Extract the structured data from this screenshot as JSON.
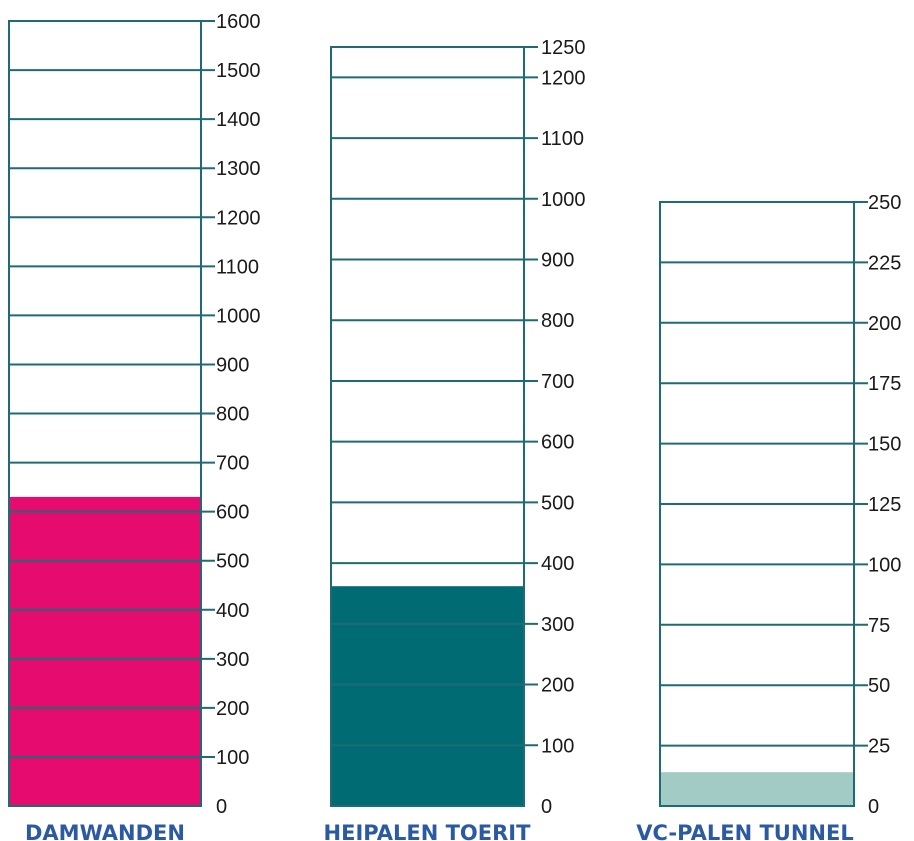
{
  "chart_data": [
    {
      "type": "bar",
      "title": "DAMWANDEN",
      "ylim": [
        0,
        1600
      ],
      "ticks": [
        "0",
        "100",
        "200",
        "300",
        "400",
        "500",
        "600",
        "700",
        "800",
        "900",
        "1000",
        "1100",
        "1200",
        "1300",
        "1400",
        "1500",
        "1600"
      ],
      "tick_values": [
        0,
        100,
        200,
        300,
        400,
        500,
        600,
        700,
        800,
        900,
        1000,
        1100,
        1200,
        1300,
        1400,
        1500,
        1600
      ],
      "value": 630,
      "fill_color": "#e60b6e",
      "line_color": "#1f6b75"
    },
    {
      "type": "bar",
      "title": "HEIPALEN TOERIT",
      "ylim": [
        0,
        1250
      ],
      "ticks": [
        "0",
        "100",
        "200",
        "300",
        "400",
        "500",
        "600",
        "700",
        "800",
        "900",
        "1000",
        "1100",
        "1200",
        "1250"
      ],
      "tick_values": [
        0,
        100,
        200,
        300,
        400,
        500,
        600,
        700,
        800,
        900,
        1000,
        1100,
        1200,
        1250
      ],
      "value": 362,
      "fill_color": "#006b73",
      "line_color": "#1f6b75"
    },
    {
      "type": "bar",
      "title": "VC-PALEN TUNNEL",
      "ylim": [
        0,
        250
      ],
      "ticks": [
        "0",
        "25",
        "50",
        "75",
        "100",
        "125",
        "150",
        "175",
        "200",
        "225",
        "250"
      ],
      "tick_values": [
        0,
        25,
        50,
        75,
        100,
        125,
        150,
        175,
        200,
        225,
        250
      ],
      "value": 14,
      "fill_color": "#a3cbc5",
      "line_color": "#1f6b75"
    }
  ]
}
